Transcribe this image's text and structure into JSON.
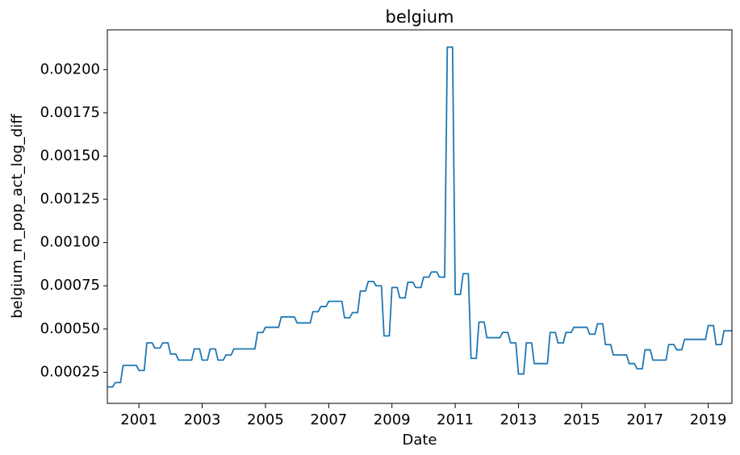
{
  "chart_data": {
    "type": "line",
    "title": "belgium",
    "x_label": "Date",
    "y_label": "belgium_m_pop_act_log_diff",
    "color": "#1f77b4",
    "x": [
      "2000-01",
      "2000-02",
      "2000-03",
      "2000-04",
      "2000-05",
      "2000-06",
      "2000-07",
      "2000-08",
      "2000-09",
      "2000-10",
      "2000-11",
      "2000-12",
      "2001-01",
      "2001-02",
      "2001-03",
      "2001-04",
      "2001-05",
      "2001-06",
      "2001-07",
      "2001-08",
      "2001-09",
      "2001-10",
      "2001-11",
      "2001-12",
      "2002-01",
      "2002-02",
      "2002-03",
      "2002-04",
      "2002-05",
      "2002-06",
      "2002-07",
      "2002-08",
      "2002-09",
      "2002-10",
      "2002-11",
      "2002-12",
      "2003-01",
      "2003-02",
      "2003-03",
      "2003-04",
      "2003-05",
      "2003-06",
      "2003-07",
      "2003-08",
      "2003-09",
      "2003-10",
      "2003-11",
      "2003-12",
      "2004-01",
      "2004-02",
      "2004-03",
      "2004-04",
      "2004-05",
      "2004-06",
      "2004-07",
      "2004-08",
      "2004-09",
      "2004-10",
      "2004-11",
      "2004-12",
      "2005-01",
      "2005-02",
      "2005-03",
      "2005-04",
      "2005-05",
      "2005-06",
      "2005-07",
      "2005-08",
      "2005-09",
      "2005-10",
      "2005-11",
      "2005-12",
      "2006-01",
      "2006-02",
      "2006-03",
      "2006-04",
      "2006-05",
      "2006-06",
      "2006-07",
      "2006-08",
      "2006-09",
      "2006-10",
      "2006-11",
      "2006-12",
      "2007-01",
      "2007-02",
      "2007-03",
      "2007-04",
      "2007-05",
      "2007-06",
      "2007-07",
      "2007-08",
      "2007-09",
      "2007-10",
      "2007-11",
      "2007-12",
      "2008-01",
      "2008-02",
      "2008-03",
      "2008-04",
      "2008-05",
      "2008-06",
      "2008-07",
      "2008-08",
      "2008-09",
      "2008-10",
      "2008-11",
      "2008-12",
      "2009-01",
      "2009-02",
      "2009-03",
      "2009-04",
      "2009-05",
      "2009-06",
      "2009-07",
      "2009-08",
      "2009-09",
      "2009-10",
      "2009-11",
      "2009-12",
      "2010-01",
      "2010-02",
      "2010-03",
      "2010-04",
      "2010-05",
      "2010-06",
      "2010-07",
      "2010-08",
      "2010-09",
      "2010-10",
      "2010-11",
      "2010-12",
      "2011-01",
      "2011-02",
      "2011-03",
      "2011-04",
      "2011-05",
      "2011-06",
      "2011-07",
      "2011-08",
      "2011-09",
      "2011-10",
      "2011-11",
      "2011-12",
      "2012-01",
      "2012-02",
      "2012-03",
      "2012-04",
      "2012-05",
      "2012-06",
      "2012-07",
      "2012-08",
      "2012-09",
      "2012-10",
      "2012-11",
      "2012-12",
      "2013-01",
      "2013-02",
      "2013-03",
      "2013-04",
      "2013-05",
      "2013-06",
      "2013-07",
      "2013-08",
      "2013-09",
      "2013-10",
      "2013-11",
      "2013-12",
      "2014-01",
      "2014-02",
      "2014-03",
      "2014-04",
      "2014-05",
      "2014-06",
      "2014-07",
      "2014-08",
      "2014-09",
      "2014-10",
      "2014-11",
      "2014-12",
      "2015-01",
      "2015-02",
      "2015-03",
      "2015-04",
      "2015-05",
      "2015-06",
      "2015-07",
      "2015-08",
      "2015-09",
      "2015-10",
      "2015-11",
      "2015-12",
      "2016-01",
      "2016-02",
      "2016-03",
      "2016-04",
      "2016-05",
      "2016-06",
      "2016-07",
      "2016-08",
      "2016-09",
      "2016-10",
      "2016-11",
      "2016-12",
      "2017-01",
      "2017-02",
      "2017-03",
      "2017-04",
      "2017-05",
      "2017-06",
      "2017-07",
      "2017-08",
      "2017-09",
      "2017-10",
      "2017-11",
      "2017-12",
      "2018-01",
      "2018-02",
      "2018-03",
      "2018-04",
      "2018-05",
      "2018-06",
      "2018-07",
      "2018-08",
      "2018-09",
      "2018-10",
      "2018-11",
      "2018-12",
      "2019-01",
      "2019-02",
      "2019-03",
      "2019-04",
      "2019-05",
      "2019-06",
      "2019-07",
      "2019-08",
      "2019-09",
      "2019-10"
    ],
    "values": [
      0.000165,
      0.000165,
      0.000165,
      0.00019,
      0.00019,
      0.00019,
      0.00029,
      0.00029,
      0.00029,
      0.00029,
      0.00029,
      0.00029,
      0.00026,
      0.00026,
      0.00026,
      0.00042,
      0.00042,
      0.00042,
      0.00039,
      0.00039,
      0.00039,
      0.00042,
      0.00042,
      0.00042,
      0.000355,
      0.000355,
      0.000355,
      0.00032,
      0.00032,
      0.00032,
      0.00032,
      0.00032,
      0.00032,
      0.000385,
      0.000385,
      0.000385,
      0.00032,
      0.00032,
      0.00032,
      0.000385,
      0.000385,
      0.000385,
      0.00032,
      0.00032,
      0.00032,
      0.00035,
      0.00035,
      0.00035,
      0.000385,
      0.000385,
      0.000385,
      0.000385,
      0.000385,
      0.000385,
      0.000385,
      0.000385,
      0.000385,
      0.00048,
      0.00048,
      0.00048,
      0.00051,
      0.00051,
      0.00051,
      0.00051,
      0.00051,
      0.00051,
      0.00057,
      0.00057,
      0.00057,
      0.00057,
      0.00057,
      0.00057,
      0.000535,
      0.000535,
      0.000535,
      0.000535,
      0.000535,
      0.000535,
      0.0006,
      0.0006,
      0.0006,
      0.00063,
      0.00063,
      0.00063,
      0.00066,
      0.00066,
      0.00066,
      0.00066,
      0.00066,
      0.00066,
      0.000565,
      0.000565,
      0.000565,
      0.000595,
      0.000595,
      0.000595,
      0.00072,
      0.00072,
      0.00072,
      0.000775,
      0.000775,
      0.000775,
      0.00075,
      0.00075,
      0.00075,
      0.00046,
      0.00046,
      0.00046,
      0.00074,
      0.00074,
      0.00074,
      0.00068,
      0.00068,
      0.00068,
      0.00077,
      0.00077,
      0.00077,
      0.00074,
      0.00074,
      0.00074,
      0.0008,
      0.0008,
      0.0008,
      0.00083,
      0.00083,
      0.00083,
      0.0008,
      0.0008,
      0.0008,
      0.00213,
      0.00213,
      0.00213,
      0.0007,
      0.0007,
      0.0007,
      0.00082,
      0.00082,
      0.00082,
      0.00033,
      0.00033,
      0.00033,
      0.00054,
      0.00054,
      0.00054,
      0.00045,
      0.00045,
      0.00045,
      0.00045,
      0.00045,
      0.00045,
      0.00048,
      0.00048,
      0.00048,
      0.00042,
      0.00042,
      0.00042,
      0.00024,
      0.00024,
      0.00024,
      0.00042,
      0.00042,
      0.00042,
      0.0003,
      0.0003,
      0.0003,
      0.0003,
      0.0003,
      0.0003,
      0.00048,
      0.00048,
      0.00048,
      0.00042,
      0.00042,
      0.00042,
      0.00048,
      0.00048,
      0.00048,
      0.00051,
      0.00051,
      0.00051,
      0.00051,
      0.00051,
      0.00051,
      0.00047,
      0.00047,
      0.00047,
      0.00053,
      0.00053,
      0.00053,
      0.00041,
      0.00041,
      0.00041,
      0.00035,
      0.00035,
      0.00035,
      0.00035,
      0.00035,
      0.00035,
      0.0003,
      0.0003,
      0.0003,
      0.00027,
      0.00027,
      0.00027,
      0.00038,
      0.00038,
      0.00038,
      0.00032,
      0.00032,
      0.00032,
      0.00032,
      0.00032,
      0.00032,
      0.00041,
      0.00041,
      0.00041,
      0.00038,
      0.00038,
      0.00038,
      0.00044,
      0.00044,
      0.00044,
      0.00044,
      0.00044,
      0.00044,
      0.00044,
      0.00044,
      0.00044,
      0.00052,
      0.00052,
      0.00052,
      0.00041,
      0.00041,
      0.00041,
      0.00049,
      0.00049,
      0.00049,
      0.00049
    ],
    "xlim": [
      "2000-01",
      "2019-10"
    ],
    "xticks": [
      "2001",
      "2003",
      "2005",
      "2007",
      "2009",
      "2011",
      "2013",
      "2015",
      "2017",
      "2019"
    ],
    "ylim": [
      7e-05,
      0.00223
    ],
    "yticks": [
      0.00025,
      {
        "value": 0.0005,
        "label": "0.00050"
      },
      0.00075,
      {
        "value": 0.001,
        "label": "0.00100"
      },
      0.00125,
      {
        "value": 0.0015,
        "label": "0.00150"
      },
      0.00175,
      {
        "value": 0.002,
        "label": "0.00200"
      }
    ],
    "grid": false
  }
}
